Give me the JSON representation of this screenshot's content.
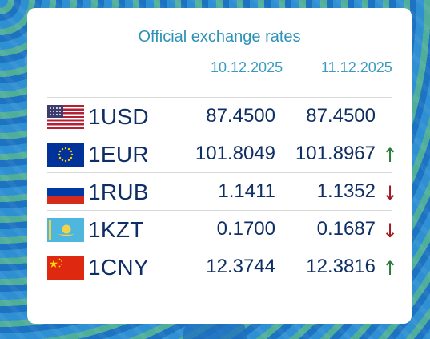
{
  "header": {
    "title": "Official exchange rates",
    "date1": "10.12.2025",
    "date2": "11.12.2025"
  },
  "rows": [
    {
      "code": "1USD",
      "rate1": "87.4500",
      "rate2": "87.4500",
      "trend": "",
      "flag": "us-flag-icon"
    },
    {
      "code": "1EUR",
      "rate1": "101.8049",
      "rate2": "101.8967",
      "trend": "↑",
      "flag": "eu-flag-icon"
    },
    {
      "code": "1RUB",
      "rate1": "1.1411",
      "rate2": "1.1352",
      "trend": "↓",
      "flag": "ru-flag-icon"
    },
    {
      "code": "1KZT",
      "rate1": "0.1700",
      "rate2": "0.1687",
      "trend": "↓",
      "flag": "kz-flag-icon"
    },
    {
      "code": "1CNY",
      "rate1": "12.3744",
      "rate2": "12.3816",
      "trend": "↑",
      "flag": "cn-flag-icon"
    }
  ],
  "colors": {
    "title": "#2d92b7",
    "date": "#3a9ac0",
    "text": "#0f2f64",
    "up": "#2a7c3a",
    "down": "#a31822"
  }
}
